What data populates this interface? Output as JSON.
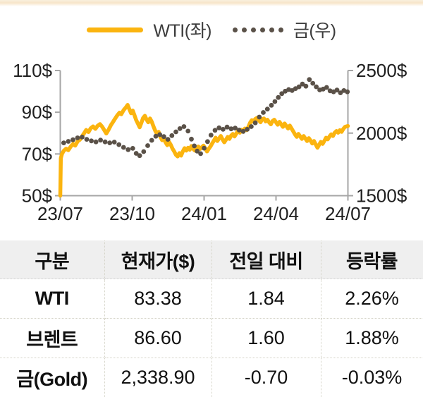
{
  "legend": {
    "wti": "WTI(좌)",
    "gold": "금(우)"
  },
  "chart_data": {
    "type": "line",
    "title": "",
    "x_tick_labels": [
      "23/07",
      "23/10",
      "24/01",
      "24/04",
      "24/07"
    ],
    "left_axis": {
      "tick_labels": [
        "110$",
        "90$",
        "70$",
        "50$"
      ],
      "tick_values": [
        110,
        90,
        70,
        50
      ],
      "range": [
        50,
        110
      ]
    },
    "right_axis": {
      "tick_labels": [
        "2500$",
        "2000$",
        "1500$"
      ],
      "tick_values": [
        2500,
        2000,
        1500
      ],
      "range": [
        1500,
        2500
      ]
    },
    "grid": false,
    "legend_position": "top",
    "series": [
      {
        "name": "WTI(좌)",
        "axis": "left",
        "style": "line",
        "color": "#FBB40F",
        "points": [
          [
            0.0,
            50.0
          ],
          [
            0.002,
            68.0
          ],
          [
            0.006,
            70.0
          ],
          [
            0.012,
            71.5
          ],
          [
            0.02,
            72.5
          ],
          [
            0.028,
            71.8
          ],
          [
            0.036,
            73.5
          ],
          [
            0.044,
            74.8
          ],
          [
            0.052,
            74.0
          ],
          [
            0.06,
            76.0
          ],
          [
            0.068,
            76.8
          ],
          [
            0.076,
            78.5
          ],
          [
            0.084,
            80.2
          ],
          [
            0.09,
            81.5
          ],
          [
            0.098,
            80.5
          ],
          [
            0.106,
            82.3
          ],
          [
            0.114,
            83.2
          ],
          [
            0.122,
            82.0
          ],
          [
            0.13,
            83.5
          ],
          [
            0.138,
            84.3
          ],
          [
            0.146,
            83.0
          ],
          [
            0.154,
            81.2
          ],
          [
            0.16,
            79.8
          ],
          [
            0.168,
            81.6
          ],
          [
            0.176,
            83.8
          ],
          [
            0.184,
            85.5
          ],
          [
            0.19,
            86.8
          ],
          [
            0.198,
            88.5
          ],
          [
            0.206,
            89.8
          ],
          [
            0.212,
            89.0
          ],
          [
            0.22,
            91.0
          ],
          [
            0.228,
            92.3
          ],
          [
            0.234,
            93.5
          ],
          [
            0.24,
            91.5
          ],
          [
            0.246,
            89.5
          ],
          [
            0.252,
            90.8
          ],
          [
            0.258,
            88.5
          ],
          [
            0.264,
            86.2
          ],
          [
            0.27,
            84.5
          ],
          [
            0.276,
            82.8
          ],
          [
            0.282,
            85.0
          ],
          [
            0.288,
            87.3
          ],
          [
            0.294,
            88.3
          ],
          [
            0.3,
            86.5
          ],
          [
            0.306,
            85.2
          ],
          [
            0.312,
            87.0
          ],
          [
            0.318,
            85.5
          ],
          [
            0.324,
            83.2
          ],
          [
            0.33,
            81.2
          ],
          [
            0.336,
            79.6
          ],
          [
            0.342,
            80.6
          ],
          [
            0.348,
            78.2
          ],
          [
            0.354,
            76.6
          ],
          [
            0.36,
            77.6
          ],
          [
            0.366,
            75.6
          ],
          [
            0.372,
            74.2
          ],
          [
            0.378,
            75.8
          ],
          [
            0.384,
            74.4
          ],
          [
            0.39,
            72.6
          ],
          [
            0.396,
            71.2
          ],
          [
            0.402,
            69.6
          ],
          [
            0.408,
            68.8
          ],
          [
            0.414,
            70.4
          ],
          [
            0.42,
            69.2
          ],
          [
            0.426,
            71.2
          ],
          [
            0.432,
            72.8
          ],
          [
            0.438,
            71.6
          ],
          [
            0.444,
            73.0
          ],
          [
            0.45,
            72.0
          ],
          [
            0.456,
            73.8
          ],
          [
            0.462,
            72.4
          ],
          [
            0.468,
            71.6
          ],
          [
            0.474,
            72.8
          ],
          [
            0.48,
            73.6
          ],
          [
            0.486,
            72.4
          ],
          [
            0.492,
            73.2
          ],
          [
            0.498,
            74.0
          ],
          [
            0.504,
            72.6
          ],
          [
            0.51,
            71.2
          ],
          [
            0.516,
            72.4
          ],
          [
            0.522,
            73.6
          ],
          [
            0.528,
            75.0
          ],
          [
            0.534,
            76.4
          ],
          [
            0.54,
            77.8
          ],
          [
            0.546,
            76.2
          ],
          [
            0.552,
            77.4
          ],
          [
            0.558,
            78.6
          ],
          [
            0.564,
            77.0
          ],
          [
            0.57,
            75.6
          ],
          [
            0.576,
            76.8
          ],
          [
            0.582,
            78.2
          ],
          [
            0.588,
            77.2
          ],
          [
            0.594,
            78.8
          ],
          [
            0.6,
            79.6
          ],
          [
            0.606,
            78.4
          ],
          [
            0.612,
            79.8
          ],
          [
            0.618,
            81.0
          ],
          [
            0.624,
            80.2
          ],
          [
            0.63,
            81.6
          ],
          [
            0.636,
            80.6
          ],
          [
            0.642,
            82.2
          ],
          [
            0.648,
            81.4
          ],
          [
            0.654,
            83.0
          ],
          [
            0.66,
            85.0
          ],
          [
            0.666,
            86.2
          ],
          [
            0.672,
            85.4
          ],
          [
            0.678,
            86.8
          ],
          [
            0.684,
            87.3
          ],
          [
            0.69,
            86.2
          ],
          [
            0.696,
            85.2
          ],
          [
            0.702,
            86.6
          ],
          [
            0.708,
            87.0
          ],
          [
            0.714,
            85.6
          ],
          [
            0.72,
            86.4
          ],
          [
            0.726,
            85.2
          ],
          [
            0.732,
            84.2
          ],
          [
            0.738,
            85.8
          ],
          [
            0.744,
            86.4
          ],
          [
            0.75,
            85.2
          ],
          [
            0.756,
            84.0
          ],
          [
            0.762,
            85.4
          ],
          [
            0.768,
            84.2
          ],
          [
            0.774,
            83.0
          ],
          [
            0.78,
            84.6
          ],
          [
            0.786,
            83.4
          ],
          [
            0.792,
            82.2
          ],
          [
            0.798,
            83.6
          ],
          [
            0.804,
            82.2
          ],
          [
            0.81,
            80.8
          ],
          [
            0.816,
            79.4
          ],
          [
            0.822,
            78.2
          ],
          [
            0.828,
            79.6
          ],
          [
            0.834,
            78.4
          ],
          [
            0.84,
            77.2
          ],
          [
            0.846,
            78.6
          ],
          [
            0.852,
            77.4
          ],
          [
            0.858,
            76.2
          ],
          [
            0.864,
            77.6
          ],
          [
            0.87,
            76.4
          ],
          [
            0.876,
            75.0
          ],
          [
            0.882,
            76.2
          ],
          [
            0.888,
            74.6
          ],
          [
            0.894,
            73.0
          ],
          [
            0.9,
            74.4
          ],
          [
            0.906,
            75.8
          ],
          [
            0.912,
            74.8
          ],
          [
            0.918,
            76.2
          ],
          [
            0.924,
            77.8
          ],
          [
            0.93,
            77.0
          ],
          [
            0.936,
            78.4
          ],
          [
            0.942,
            79.4
          ],
          [
            0.948,
            78.6
          ],
          [
            0.954,
            80.2
          ],
          [
            0.96,
            81.0
          ],
          [
            0.966,
            80.2
          ],
          [
            0.972,
            81.4
          ],
          [
            0.978,
            80.6
          ],
          [
            0.984,
            82.0
          ],
          [
            0.99,
            83.0
          ],
          [
            1.0,
            83.4
          ]
        ]
      },
      {
        "name": "금(우)",
        "axis": "right",
        "style": "dots",
        "color": "#5A5148",
        "points": [
          [
            0.012,
            1922
          ],
          [
            0.028,
            1934
          ],
          [
            0.044,
            1947
          ],
          [
            0.06,
            1962
          ],
          [
            0.076,
            1968
          ],
          [
            0.092,
            1950
          ],
          [
            0.108,
            1938
          ],
          [
            0.124,
            1930
          ],
          [
            0.14,
            1944
          ],
          [
            0.156,
            1930
          ],
          [
            0.172,
            1922
          ],
          [
            0.188,
            1928
          ],
          [
            0.204,
            1908
          ],
          [
            0.22,
            1886
          ],
          [
            0.236,
            1868
          ],
          [
            0.252,
            1878
          ],
          [
            0.264,
            1838
          ],
          [
            0.276,
            1820
          ],
          [
            0.29,
            1852
          ],
          [
            0.304,
            1900
          ],
          [
            0.318,
            1942
          ],
          [
            0.332,
            1975
          ],
          [
            0.346,
            1988
          ],
          [
            0.36,
            1972
          ],
          [
            0.374,
            1950
          ],
          [
            0.388,
            1980
          ],
          [
            0.402,
            2010
          ],
          [
            0.416,
            2036
          ],
          [
            0.43,
            2052
          ],
          [
            0.444,
            2016
          ],
          [
            0.456,
            1952
          ],
          [
            0.466,
            1898
          ],
          [
            0.476,
            1856
          ],
          [
            0.488,
            1836
          ],
          [
            0.5,
            1880
          ],
          [
            0.512,
            1932
          ],
          [
            0.524,
            1984
          ],
          [
            0.538,
            2022
          ],
          [
            0.552,
            2042
          ],
          [
            0.566,
            2030
          ],
          [
            0.58,
            2048
          ],
          [
            0.594,
            2034
          ],
          [
            0.608,
            2040
          ],
          [
            0.622,
            2024
          ],
          [
            0.636,
            2014
          ],
          [
            0.65,
            2030
          ],
          [
            0.664,
            2052
          ],
          [
            0.678,
            2082
          ],
          [
            0.692,
            2128
          ],
          [
            0.706,
            2165
          ],
          [
            0.72,
            2192
          ],
          [
            0.734,
            2222
          ],
          [
            0.746,
            2252
          ],
          [
            0.758,
            2285
          ],
          [
            0.77,
            2315
          ],
          [
            0.782,
            2335
          ],
          [
            0.794,
            2348
          ],
          [
            0.806,
            2340
          ],
          [
            0.818,
            2356
          ],
          [
            0.83,
            2370
          ],
          [
            0.842,
            2392
          ],
          [
            0.854,
            2375
          ],
          [
            0.866,
            2428
          ],
          [
            0.878,
            2398
          ],
          [
            0.89,
            2370
          ],
          [
            0.902,
            2345
          ],
          [
            0.914,
            2352
          ],
          [
            0.926,
            2365
          ],
          [
            0.938,
            2338
          ],
          [
            0.95,
            2330
          ],
          [
            0.962,
            2344
          ],
          [
            0.974,
            2322
          ],
          [
            0.986,
            2340
          ],
          [
            0.998,
            2330
          ]
        ]
      }
    ]
  },
  "table": {
    "headers": [
      "구분",
      "현재가($)",
      "전일 대비",
      "등락률"
    ],
    "rows": [
      {
        "name": "WTI",
        "price": "83.38",
        "change": "1.84",
        "pct": "2.26%"
      },
      {
        "name": "브렌트",
        "price": "86.60",
        "change": "1.60",
        "pct": "1.88%"
      },
      {
        "name": "금(Gold)",
        "price": "2,338.90",
        "change": "-0.70",
        "pct": "-0.03%"
      }
    ]
  },
  "colors": {
    "wti_line": "#FBB40F",
    "gold_dots": "#5A5148",
    "axis": "#A6A6A6",
    "header_bg": "#EFEFEF"
  }
}
